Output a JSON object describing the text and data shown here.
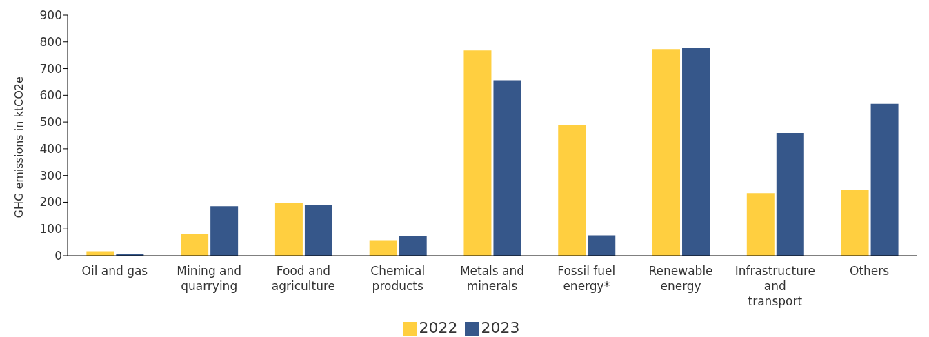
{
  "chart_data": {
    "type": "bar",
    "ylabel": "GHG emissions in ktCO2e",
    "categories": [
      "Oil and gas",
      "Mining and quarrying",
      "Food and agriculture",
      "Chemical products",
      "Metals and minerals",
      "Fossil fuel energy*",
      "Renewable energy",
      "Infrastructure and transport",
      "Others"
    ],
    "series": [
      {
        "name": "2022",
        "color": "#ffcf40",
        "values": [
          17,
          80,
          198,
          58,
          768,
          488,
          773,
          234,
          246
        ]
      },
      {
        "name": "2023",
        "color": "#36578a",
        "values": [
          7,
          185,
          188,
          73,
          656,
          76,
          776,
          459,
          568
        ]
      }
    ],
    "ylim": [
      0,
      900
    ],
    "yticks": [
      0,
      100,
      200,
      300,
      400,
      500,
      600,
      700,
      800,
      900
    ],
    "grid": false,
    "legend": "bottom"
  }
}
